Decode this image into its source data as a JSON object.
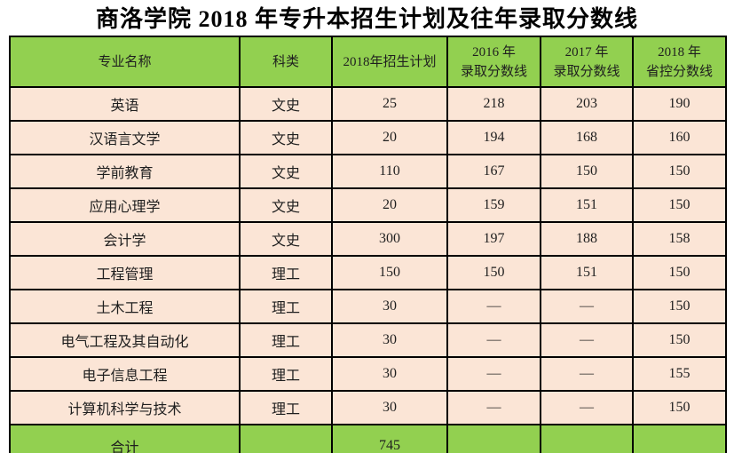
{
  "title": "商洛学院 2018 年专升本招生计划及往年录取分数线",
  "colors": {
    "header_bg": "#92D050",
    "footer_bg": "#92D050",
    "body_bg": "#FBE5D6",
    "border": "#000000",
    "text": "#1F1F1F",
    "title_text": "#000000"
  },
  "table": {
    "columns": [
      {
        "label": "专业名称"
      },
      {
        "label": "科类"
      },
      {
        "label": "2018年招生计划"
      },
      {
        "line1": "2016 年",
        "line2": "录取分数线"
      },
      {
        "line1": "2017 年",
        "line2": "录取分数线"
      },
      {
        "line1": "2018 年",
        "line2": "省控分数线"
      }
    ],
    "rows": [
      [
        "英语",
        "文史",
        "25",
        "218",
        "203",
        "190"
      ],
      [
        "汉语言文学",
        "文史",
        "20",
        "194",
        "168",
        "160"
      ],
      [
        "学前教育",
        "文史",
        "110",
        "167",
        "150",
        "150"
      ],
      [
        "应用心理学",
        "文史",
        "20",
        "159",
        "151",
        "150"
      ],
      [
        "会计学",
        "文史",
        "300",
        "197",
        "188",
        "158"
      ],
      [
        "工程管理",
        "理工",
        "150",
        "150",
        "151",
        "150"
      ],
      [
        "土木工程",
        "理工",
        "30",
        "—",
        "—",
        "150"
      ],
      [
        "电气工程及其自动化",
        "理工",
        "30",
        "—",
        "—",
        "150"
      ],
      [
        "电子信息工程",
        "理工",
        "30",
        "—",
        "—",
        "155"
      ],
      [
        "计算机科学与技术",
        "理工",
        "30",
        "—",
        "—",
        "150"
      ]
    ],
    "footer": [
      "合计",
      "",
      "745",
      "",
      "",
      ""
    ]
  }
}
